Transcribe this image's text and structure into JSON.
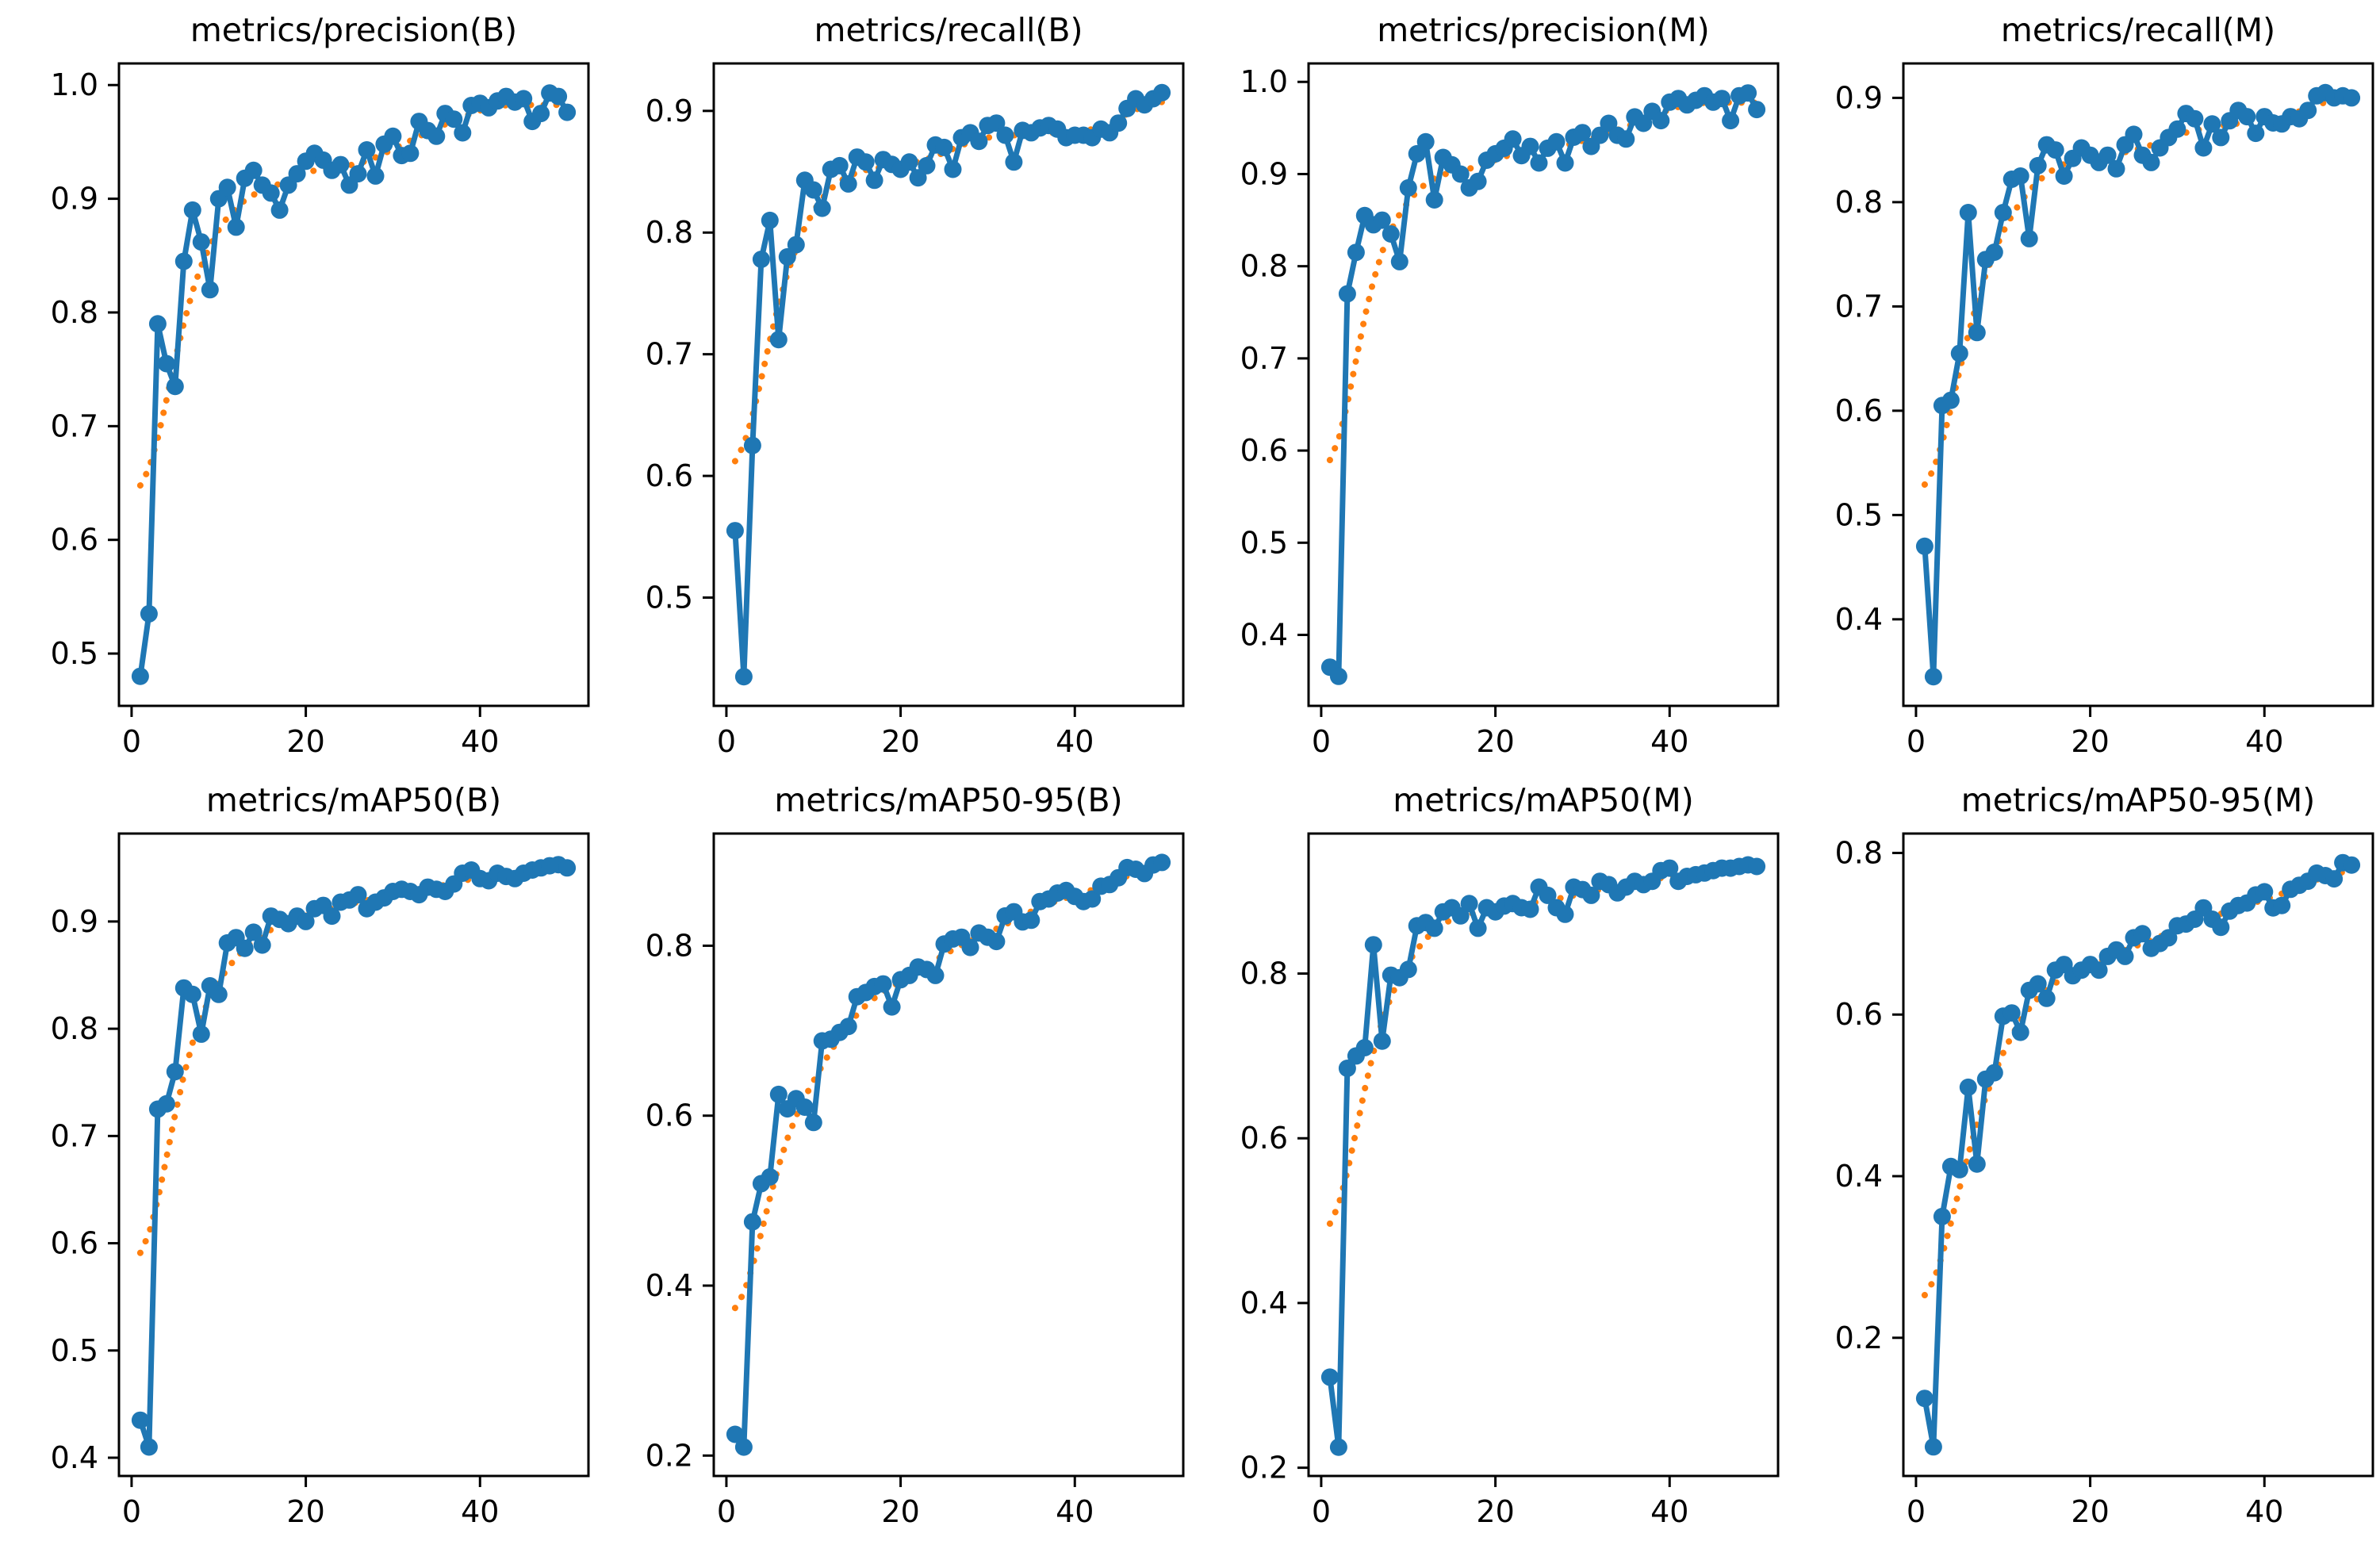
{
  "figure": {
    "rows": 2,
    "cols": 4,
    "background": "#ffffff"
  },
  "colors": {
    "results": "#1f77b4",
    "smooth": "#ff7f0e",
    "axis": "#000000"
  },
  "chart_data": [
    {
      "type": "line",
      "title": "metrics/precision(B)",
      "x_epochs_from": 1,
      "xticks": [
        0,
        20,
        40
      ],
      "yticks": [
        0.5,
        0.6,
        0.7,
        0.8,
        0.9,
        1.0
      ],
      "xlim": [
        -1.45,
        52.45
      ],
      "ylim": [
        0.454,
        1.019
      ],
      "grid": false,
      "series": [
        {
          "name": "results",
          "color": "#1f77b4",
          "style": "solid-with-dot-markers",
          "values": [
            0.48,
            0.535,
            0.79,
            0.755,
            0.735,
            0.845,
            0.89,
            0.862,
            0.82,
            0.9,
            0.91,
            0.875,
            0.918,
            0.925,
            0.912,
            0.905,
            0.89,
            0.912,
            0.922,
            0.933,
            0.94,
            0.934,
            0.925,
            0.93,
            0.912,
            0.922,
            0.943,
            0.92,
            0.948,
            0.955,
            0.938,
            0.94,
            0.968,
            0.96,
            0.955,
            0.975,
            0.97,
            0.958,
            0.982,
            0.984,
            0.98,
            0.986,
            0.99,
            0.985,
            0.988,
            0.968,
            0.975,
            0.993,
            0.99,
            0.976
          ]
        },
        {
          "name": "smooth",
          "color": "#ff7f0e",
          "style": "dotted",
          "derived_from": "results",
          "method": "gaussian",
          "sigma": 3
        }
      ]
    },
    {
      "type": "line",
      "title": "metrics/recall(B)",
      "x_epochs_from": 1,
      "xticks": [
        0,
        20,
        40
      ],
      "yticks": [
        0.5,
        0.6,
        0.7,
        0.8,
        0.9
      ],
      "xlim": [
        -1.45,
        52.45
      ],
      "ylim": [
        0.411,
        0.939
      ],
      "grid": false,
      "series": [
        {
          "name": "results",
          "color": "#1f77b4",
          "style": "solid-with-dot-markers",
          "values": [
            0.555,
            0.435,
            0.625,
            0.778,
            0.81,
            0.712,
            0.78,
            0.79,
            0.843,
            0.835,
            0.82,
            0.852,
            0.855,
            0.84,
            0.862,
            0.858,
            0.843,
            0.86,
            0.856,
            0.852,
            0.858,
            0.845,
            0.855,
            0.872,
            0.87,
            0.852,
            0.878,
            0.882,
            0.875,
            0.888,
            0.89,
            0.88,
            0.858,
            0.884,
            0.882,
            0.886,
            0.888,
            0.885,
            0.878,
            0.88,
            0.88,
            0.878,
            0.885,
            0.882,
            0.89,
            0.902,
            0.91,
            0.905,
            0.91,
            0.915
          ]
        },
        {
          "name": "smooth",
          "color": "#ff7f0e",
          "style": "dotted",
          "derived_from": "results",
          "method": "gaussian",
          "sigma": 3
        }
      ]
    },
    {
      "type": "line",
      "title": "metrics/precision(M)",
      "x_epochs_from": 1,
      "xticks": [
        0,
        20,
        40
      ],
      "yticks": [
        0.4,
        0.5,
        0.6,
        0.7,
        0.8,
        0.9,
        1.0
      ],
      "xlim": [
        -1.45,
        52.45
      ],
      "ylim": [
        0.323,
        1.02
      ],
      "grid": false,
      "series": [
        {
          "name": "results",
          "color": "#1f77b4",
          "style": "solid-with-dot-markers",
          "values": [
            0.365,
            0.355,
            0.77,
            0.815,
            0.855,
            0.845,
            0.85,
            0.835,
            0.805,
            0.885,
            0.922,
            0.935,
            0.872,
            0.918,
            0.91,
            0.9,
            0.885,
            0.892,
            0.915,
            0.922,
            0.928,
            0.938,
            0.92,
            0.93,
            0.912,
            0.928,
            0.935,
            0.912,
            0.94,
            0.945,
            0.93,
            0.942,
            0.955,
            0.942,
            0.938,
            0.962,
            0.955,
            0.968,
            0.958,
            0.978,
            0.982,
            0.975,
            0.98,
            0.985,
            0.978,
            0.982,
            0.958,
            0.985,
            0.988,
            0.97
          ]
        },
        {
          "name": "smooth",
          "color": "#ff7f0e",
          "style": "dotted",
          "derived_from": "results",
          "method": "gaussian",
          "sigma": 3
        }
      ]
    },
    {
      "type": "line",
      "title": "metrics/recall(M)",
      "x_epochs_from": 1,
      "xticks": [
        0,
        20,
        40
      ],
      "yticks": [
        0.4,
        0.5,
        0.6,
        0.7,
        0.8,
        0.9
      ],
      "xlim": [
        -1.45,
        52.45
      ],
      "ylim": [
        0.317,
        0.933
      ],
      "grid": false,
      "series": [
        {
          "name": "results",
          "color": "#1f77b4",
          "style": "solid-with-dot-markers",
          "values": [
            0.47,
            0.345,
            0.605,
            0.61,
            0.655,
            0.79,
            0.675,
            0.745,
            0.752,
            0.79,
            0.822,
            0.825,
            0.765,
            0.835,
            0.855,
            0.85,
            0.825,
            0.842,
            0.852,
            0.845,
            0.838,
            0.845,
            0.832,
            0.855,
            0.865,
            0.845,
            0.838,
            0.852,
            0.862,
            0.87,
            0.885,
            0.88,
            0.852,
            0.875,
            0.862,
            0.878,
            0.888,
            0.882,
            0.866,
            0.882,
            0.876,
            0.875,
            0.882,
            0.88,
            0.888,
            0.902,
            0.905,
            0.9,
            0.902,
            0.9
          ]
        },
        {
          "name": "smooth",
          "color": "#ff7f0e",
          "style": "dotted",
          "derived_from": "results",
          "method": "gaussian",
          "sigma": 3
        }
      ]
    },
    {
      "type": "line",
      "title": "metrics/mAP50(B)",
      "x_epochs_from": 1,
      "xticks": [
        0,
        20,
        40
      ],
      "yticks": [
        0.4,
        0.5,
        0.6,
        0.7,
        0.8,
        0.9
      ],
      "xlim": [
        -1.45,
        52.45
      ],
      "ylim": [
        0.383,
        0.982
      ],
      "grid": false,
      "series": [
        {
          "name": "results",
          "color": "#1f77b4",
          "style": "solid-with-dot-markers",
          "values": [
            0.435,
            0.41,
            0.725,
            0.73,
            0.76,
            0.838,
            0.832,
            0.795,
            0.84,
            0.832,
            0.88,
            0.885,
            0.875,
            0.89,
            0.878,
            0.905,
            0.902,
            0.898,
            0.905,
            0.9,
            0.912,
            0.915,
            0.905,
            0.918,
            0.92,
            0.925,
            0.912,
            0.918,
            0.922,
            0.928,
            0.93,
            0.928,
            0.925,
            0.932,
            0.93,
            0.928,
            0.935,
            0.945,
            0.948,
            0.94,
            0.938,
            0.945,
            0.942,
            0.94,
            0.945,
            0.948,
            0.95,
            0.952,
            0.953,
            0.95
          ]
        },
        {
          "name": "smooth",
          "color": "#ff7f0e",
          "style": "dotted",
          "derived_from": "results",
          "method": "gaussian",
          "sigma": 3
        }
      ]
    },
    {
      "type": "line",
      "title": "metrics/mAP50-95(B)",
      "x_epochs_from": 1,
      "xticks": [
        0,
        20,
        40
      ],
      "yticks": [
        0.2,
        0.4,
        0.6,
        0.8
      ],
      "xlim": [
        -1.45,
        52.45
      ],
      "ylim": [
        0.176,
        0.932
      ],
      "grid": false,
      "series": [
        {
          "name": "results",
          "color": "#1f77b4",
          "style": "solid-with-dot-markers",
          "values": [
            0.225,
            0.21,
            0.475,
            0.52,
            0.528,
            0.625,
            0.608,
            0.62,
            0.61,
            0.592,
            0.688,
            0.69,
            0.698,
            0.705,
            0.74,
            0.745,
            0.752,
            0.755,
            0.728,
            0.76,
            0.765,
            0.775,
            0.772,
            0.765,
            0.802,
            0.808,
            0.81,
            0.798,
            0.815,
            0.81,
            0.805,
            0.835,
            0.84,
            0.828,
            0.83,
            0.852,
            0.855,
            0.862,
            0.865,
            0.858,
            0.852,
            0.855,
            0.87,
            0.872,
            0.88,
            0.892,
            0.89,
            0.885,
            0.895,
            0.898
          ]
        },
        {
          "name": "smooth",
          "color": "#ff7f0e",
          "style": "dotted",
          "derived_from": "results",
          "method": "gaussian",
          "sigma": 3
        }
      ]
    },
    {
      "type": "line",
      "title": "metrics/mAP50(M)",
      "x_epochs_from": 1,
      "xticks": [
        0,
        20,
        40
      ],
      "yticks": [
        0.2,
        0.4,
        0.6,
        0.8
      ],
      "xlim": [
        -1.45,
        52.45
      ],
      "ylim": [
        0.19,
        0.97
      ],
      "grid": false,
      "series": [
        {
          "name": "results",
          "color": "#1f77b4",
          "style": "solid-with-dot-markers",
          "values": [
            0.31,
            0.225,
            0.685,
            0.7,
            0.71,
            0.835,
            0.718,
            0.798,
            0.795,
            0.805,
            0.858,
            0.862,
            0.855,
            0.875,
            0.88,
            0.87,
            0.885,
            0.855,
            0.88,
            0.875,
            0.882,
            0.885,
            0.88,
            0.878,
            0.905,
            0.895,
            0.88,
            0.872,
            0.905,
            0.902,
            0.895,
            0.912,
            0.908,
            0.898,
            0.905,
            0.912,
            0.908,
            0.912,
            0.925,
            0.928,
            0.912,
            0.918,
            0.92,
            0.922,
            0.925,
            0.928,
            0.928,
            0.93,
            0.932,
            0.93
          ]
        },
        {
          "name": "smooth",
          "color": "#ff7f0e",
          "style": "dotted",
          "derived_from": "results",
          "method": "gaussian",
          "sigma": 3
        }
      ]
    },
    {
      "type": "line",
      "title": "metrics/mAP50-95(M)",
      "x_epochs_from": 1,
      "xticks": [
        0,
        20,
        40
      ],
      "yticks": [
        0.2,
        0.4,
        0.6,
        0.8
      ],
      "xlim": [
        -1.45,
        52.45
      ],
      "ylim": [
        0.029,
        0.824
      ],
      "grid": false,
      "series": [
        {
          "name": "results",
          "color": "#1f77b4",
          "style": "solid-with-dot-markers",
          "values": [
            0.125,
            0.065,
            0.35,
            0.412,
            0.408,
            0.51,
            0.415,
            0.52,
            0.528,
            0.598,
            0.602,
            0.578,
            0.63,
            0.638,
            0.62,
            0.655,
            0.662,
            0.648,
            0.655,
            0.662,
            0.655,
            0.672,
            0.68,
            0.672,
            0.695,
            0.7,
            0.682,
            0.688,
            0.695,
            0.71,
            0.712,
            0.718,
            0.732,
            0.718,
            0.708,
            0.728,
            0.735,
            0.738,
            0.748,
            0.752,
            0.732,
            0.735,
            0.755,
            0.76,
            0.765,
            0.775,
            0.772,
            0.768,
            0.788,
            0.785
          ]
        },
        {
          "name": "smooth",
          "color": "#ff7f0e",
          "style": "dotted",
          "derived_from": "results",
          "method": "gaussian",
          "sigma": 3
        }
      ]
    }
  ]
}
